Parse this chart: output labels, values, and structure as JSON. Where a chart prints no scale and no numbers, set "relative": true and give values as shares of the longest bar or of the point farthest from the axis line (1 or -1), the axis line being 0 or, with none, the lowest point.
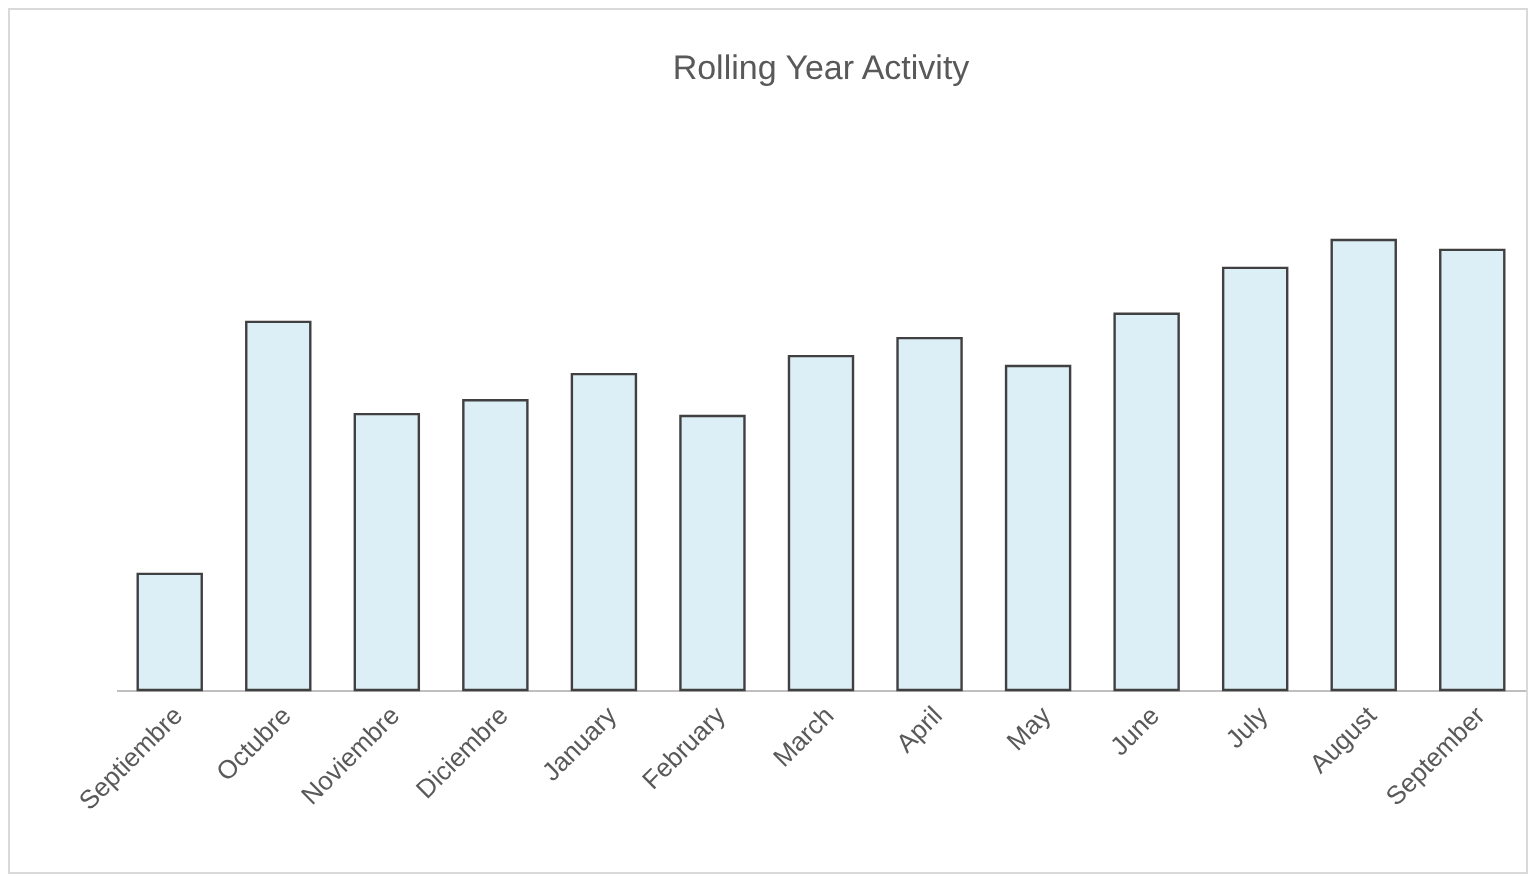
{
  "chart_data": {
    "type": "bar",
    "title": "Rolling Year Activity",
    "relative": true,
    "color": "#ddeff6",
    "categories": [
      "Septiembre",
      "Octubre",
      "Noviembre",
      "Diciembre",
      "January",
      "February",
      "March",
      "April",
      "May",
      "June",
      "July",
      "August",
      "September"
    ],
    "values": [
      0.258,
      0.818,
      0.613,
      0.644,
      0.702,
      0.609,
      0.742,
      0.782,
      0.72,
      0.836,
      0.938,
      1,
      0.978
    ]
  }
}
